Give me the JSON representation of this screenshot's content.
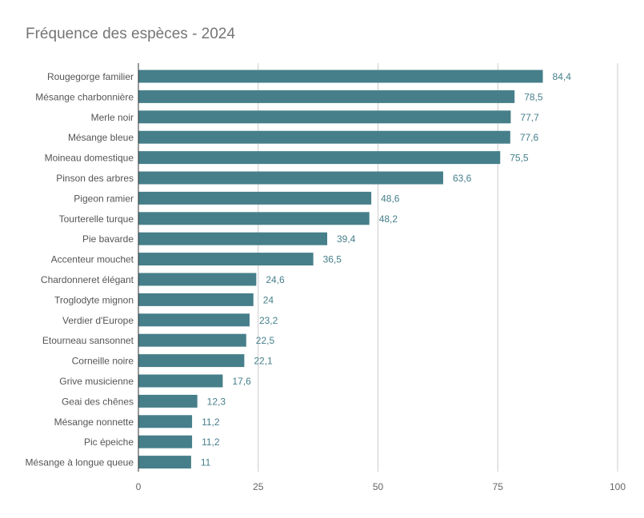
{
  "chart_data": {
    "type": "bar",
    "orientation": "horizontal",
    "title": "Fréquence des espèces - 2024",
    "categories": [
      "Rougegorge familier",
      "Mésange charbonnière",
      "Merle noir",
      "Mésange bleue",
      "Moineau domestique",
      "Pinson des arbres",
      "Pigeon ramier",
      "Tourterelle turque",
      "Pie bavarde",
      "Accenteur mouchet",
      "Chardonneret élégant",
      "Troglodyte mignon",
      "Verdier d'Europe",
      "Etourneau sansonnet",
      "Corneille noire",
      "Grive musicienne",
      "Geai des chênes",
      "Mésange nonnette",
      "Pic épeiche",
      "Mésange à longue queue"
    ],
    "values": [
      84.4,
      78.5,
      77.7,
      77.6,
      75.5,
      63.6,
      48.6,
      48.2,
      39.4,
      36.5,
      24.6,
      24,
      23.2,
      22.5,
      22.1,
      17.6,
      12.3,
      11.2,
      11.2,
      11
    ],
    "value_labels": [
      "84,4",
      "78,5",
      "77,7",
      "77,6",
      "75,5",
      "63,6",
      "48,6",
      "48,2",
      "39,4",
      "36,5",
      "24,6",
      "24",
      "23,2",
      "22,5",
      "22,1",
      "17,6",
      "12,3",
      "11,2",
      "11,2",
      "11"
    ],
    "xlim": [
      0,
      100
    ],
    "xticks": [
      0,
      25,
      50,
      75,
      100
    ],
    "xtick_labels": [
      "0",
      "25",
      "50",
      "75",
      "100"
    ],
    "xlabel": "",
    "ylabel": "",
    "grid": true,
    "legend": "none",
    "bar_color": "#467f8a",
    "label_color": "#467f8a",
    "category_label_color": "#555555",
    "tick_label_color": "#666666",
    "grid_color": "#cccccc",
    "axis_color": "#333333"
  }
}
